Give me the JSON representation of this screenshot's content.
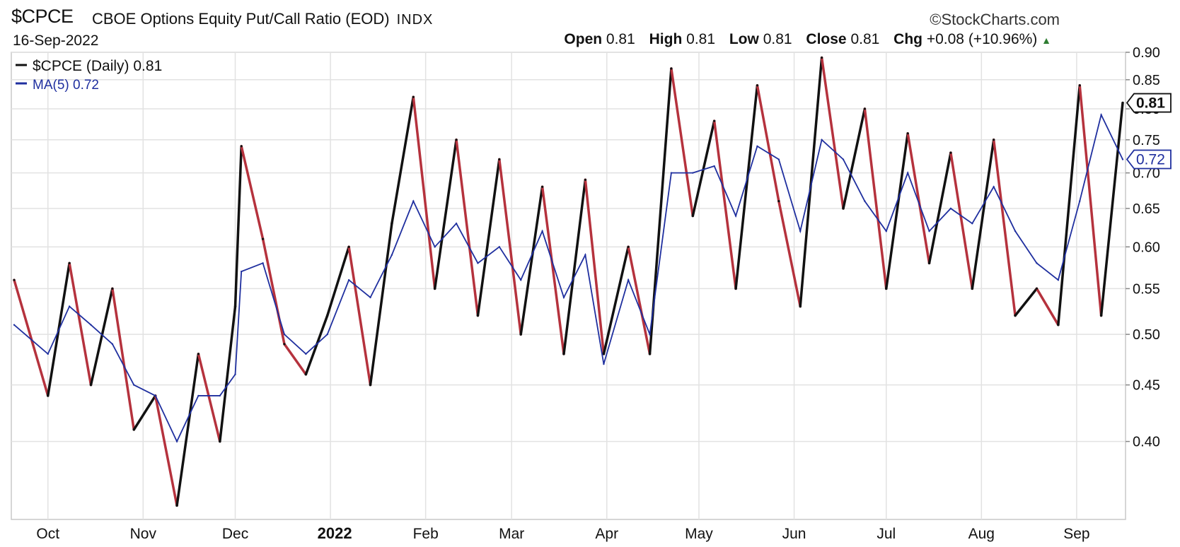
{
  "header": {
    "symbol": "$CPCE",
    "name": "CBOE Options Equity Put/Call Ratio (EOD)",
    "exchange": "INDX",
    "date": "16-Sep-2022",
    "brand": "©StockCharts.com",
    "open_label": "Open",
    "open": "0.81",
    "high_label": "High",
    "high": "0.81",
    "low_label": "Low",
    "low": "0.81",
    "close_label": "Close",
    "close": "0.81",
    "chg_label": "Chg",
    "chg": "+0.08 (+10.96%)",
    "up_arrow": "▲"
  },
  "chart_data": {
    "type": "line",
    "title": "CBOE Options Equity Put/Call Ratio (EOD)",
    "yscale": "log",
    "ylim": [
      0.34,
      0.9
    ],
    "y_ticks": [
      0.4,
      0.45,
      0.5,
      0.55,
      0.6,
      0.65,
      0.7,
      0.75,
      0.8,
      0.85,
      0.9
    ],
    "y_tick_labels": [
      "0.40",
      "0.45",
      "0.50",
      "0.55",
      "0.60",
      "0.65",
      "0.70",
      "0.75",
      "0.80",
      "0.85",
      "0.90"
    ],
    "x_range": [
      "2021-09-20",
      "2022-09-16"
    ],
    "x_ticks": [
      {
        "date": "2021-10-01",
        "label": "Oct"
      },
      {
        "date": "2021-11-01",
        "label": "Nov"
      },
      {
        "date": "2021-12-01",
        "label": "Dec"
      },
      {
        "date": "2022-01-01",
        "label": "2022"
      },
      {
        "date": "2022-02-01",
        "label": "Feb"
      },
      {
        "date": "2022-03-01",
        "label": "Mar"
      },
      {
        "date": "2022-04-01",
        "label": "Apr"
      },
      {
        "date": "2022-05-01",
        "label": "May"
      },
      {
        "date": "2022-06-01",
        "label": "Jun"
      },
      {
        "date": "2022-07-01",
        "label": "Jul"
      },
      {
        "date": "2022-08-01",
        "label": "Aug"
      },
      {
        "date": "2022-09-01",
        "label": "Sep"
      }
    ],
    "grid": true,
    "legend_position": "top-left",
    "up_color": "#111111",
    "down_color": "#b5323d",
    "ma_color": "#1f2f9f",
    "series": [
      {
        "name": "$CPCE (Daily)",
        "legend_value": "0.81",
        "last_label": "0.81",
        "x": [
          "2021-09-20",
          "2021-10-01",
          "2021-10-08",
          "2021-10-15",
          "2021-10-22",
          "2021-10-29",
          "2021-11-05",
          "2021-11-12",
          "2021-11-19",
          "2021-11-26",
          "2021-12-01",
          "2021-12-03",
          "2021-12-10",
          "2021-12-17",
          "2021-12-24",
          "2021-12-31",
          "2022-01-07",
          "2022-01-14",
          "2022-01-21",
          "2022-01-28",
          "2022-02-04",
          "2022-02-11",
          "2022-02-18",
          "2022-02-25",
          "2022-03-04",
          "2022-03-11",
          "2022-03-18",
          "2022-03-25",
          "2022-03-31",
          "2022-04-08",
          "2022-04-15",
          "2022-04-22",
          "2022-04-29",
          "2022-05-06",
          "2022-05-13",
          "2022-05-20",
          "2022-05-27",
          "2022-06-03",
          "2022-06-10",
          "2022-06-17",
          "2022-06-24",
          "2022-07-01",
          "2022-07-08",
          "2022-07-15",
          "2022-07-22",
          "2022-07-29",
          "2022-08-05",
          "2022-08-12",
          "2022-08-19",
          "2022-08-26",
          "2022-09-02",
          "2022-09-09",
          "2022-09-16"
        ],
        "values": [
          0.56,
          0.44,
          0.58,
          0.45,
          0.55,
          0.41,
          0.44,
          0.35,
          0.48,
          0.4,
          0.53,
          0.74,
          0.61,
          0.49,
          0.46,
          0.52,
          0.6,
          0.45,
          0.63,
          0.82,
          0.55,
          0.75,
          0.52,
          0.72,
          0.5,
          0.68,
          0.48,
          0.69,
          0.48,
          0.6,
          0.48,
          0.87,
          0.64,
          0.78,
          0.55,
          0.84,
          0.66,
          0.53,
          0.89,
          0.65,
          0.8,
          0.55,
          0.76,
          0.58,
          0.73,
          0.55,
          0.75,
          0.52,
          0.55,
          0.51,
          0.84,
          0.52,
          0.81
        ]
      },
      {
        "name": "MA(5)",
        "legend_value": "0.72",
        "last_label": "0.72",
        "x": [
          "2021-09-20",
          "2021-10-01",
          "2021-10-08",
          "2021-10-15",
          "2021-10-22",
          "2021-10-29",
          "2021-11-05",
          "2021-11-12",
          "2021-11-19",
          "2021-11-26",
          "2021-12-01",
          "2021-12-03",
          "2021-12-10",
          "2021-12-17",
          "2021-12-24",
          "2021-12-31",
          "2022-01-07",
          "2022-01-14",
          "2022-01-21",
          "2022-01-28",
          "2022-02-04",
          "2022-02-11",
          "2022-02-18",
          "2022-02-25",
          "2022-03-04",
          "2022-03-11",
          "2022-03-18",
          "2022-03-25",
          "2022-03-31",
          "2022-04-08",
          "2022-04-15",
          "2022-04-22",
          "2022-04-29",
          "2022-05-06",
          "2022-05-13",
          "2022-05-20",
          "2022-05-27",
          "2022-06-03",
          "2022-06-10",
          "2022-06-17",
          "2022-06-24",
          "2022-07-01",
          "2022-07-08",
          "2022-07-15",
          "2022-07-22",
          "2022-07-29",
          "2022-08-05",
          "2022-08-12",
          "2022-08-19",
          "2022-08-26",
          "2022-09-02",
          "2022-09-09",
          "2022-09-16"
        ],
        "values": [
          0.51,
          0.48,
          0.53,
          0.51,
          0.49,
          0.45,
          0.44,
          0.4,
          0.44,
          0.44,
          0.46,
          0.57,
          0.58,
          0.5,
          0.48,
          0.5,
          0.56,
          0.54,
          0.59,
          0.66,
          0.6,
          0.63,
          0.58,
          0.6,
          0.56,
          0.62,
          0.54,
          0.59,
          0.47,
          0.56,
          0.5,
          0.7,
          0.7,
          0.71,
          0.64,
          0.74,
          0.72,
          0.62,
          0.75,
          0.72,
          0.66,
          0.62,
          0.7,
          0.62,
          0.65,
          0.63,
          0.68,
          0.62,
          0.58,
          0.56,
          0.66,
          0.79,
          0.72
        ]
      }
    ]
  }
}
